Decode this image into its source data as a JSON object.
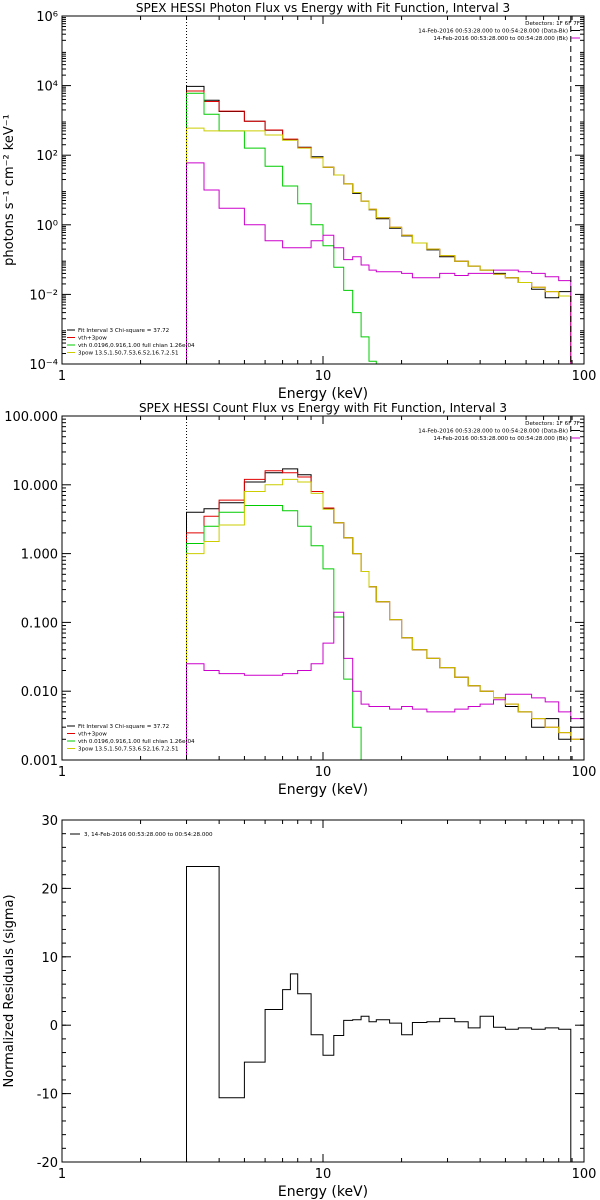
{
  "chart_data": [
    {
      "type": "line",
      "title": "SPEX HESSI Photon Flux vs Energy with Fit Function, Interval 3",
      "xlabel": "Energy (keV)",
      "ylabel": "photons s⁻¹ cm⁻² keV⁻¹",
      "xscale": "log",
      "yscale": "log",
      "xlim": [
        1,
        100
      ],
      "ylim": [
        0.0001,
        1000000
      ],
      "x_ticks": [
        1,
        10,
        100
      ],
      "x_tick_labels": [
        "1",
        "10",
        "100"
      ],
      "y_ticks": [
        0.0001,
        0.01,
        1,
        100,
        10000,
        1000000
      ],
      "y_tick_labels": [
        "10⁻⁴",
        "10⁻²",
        "10⁰",
        "10²",
        "10⁴",
        "10⁶"
      ],
      "vlines": [
        {
          "x": 3,
          "style": "dotted"
        },
        {
          "x": 89,
          "style": "dashed"
        }
      ],
      "legend_topright": [
        {
          "text": "Detectors: 1F 6F 7F"
        },
        {
          "text": "14-Feb-2016 00:53:28.000 to 00:54:28.000 (Data-Bk)",
          "color": "#000000"
        },
        {
          "text": "14-Feb-2016 00:53:28.000 to 00:54:28.000 (Bk)",
          "color": "#cc00cc"
        }
      ],
      "legend_bottomleft": [
        {
          "text": "Fit Interval 3   Chi-square = 37.72",
          "color": "#000000"
        },
        {
          "text": "vth+3pow",
          "color": "#e00000"
        },
        {
          "text": "vth 0.0196,0.916,1.00  full chian 1.26e-04",
          "color": "#00cc00"
        },
        {
          "text": "3pow 13.5,1.50,7.53,6.52,16.7,2.51",
          "color": "#cccc00"
        }
      ],
      "edges": [
        3,
        3.5,
        4,
        5,
        6,
        7,
        8,
        9,
        10,
        11,
        12,
        13,
        14,
        15,
        16,
        18,
        20,
        22,
        25,
        28,
        32,
        36,
        40,
        45,
        50,
        56,
        63,
        71,
        80,
        89
      ],
      "series": [
        {
          "name": "Data-Bk",
          "color": "#000000",
          "values": [
            9500,
            3800,
            1800,
            950,
            520,
            280,
            170,
            90,
            45,
            27,
            15,
            8,
            4.8,
            2.7,
            1.5,
            0.8,
            0.48,
            0.3,
            0.19,
            0.12,
            0.09,
            0.065,
            0.05,
            0.04,
            0.03,
            0.022,
            0.014,
            0.008,
            0.012
          ]
        },
        {
          "name": "vth+3pow",
          "color": "#e00000",
          "values": [
            7000,
            3500,
            1850,
            950,
            530,
            290,
            165,
            85,
            45,
            27,
            15,
            8.5,
            4.8,
            2.8,
            1.6,
            0.85,
            0.5,
            0.3,
            0.2,
            0.13,
            0.09,
            0.065,
            0.05,
            0.038,
            0.03,
            0.022,
            0.016,
            0.012,
            0.009
          ]
        },
        {
          "name": "vth",
          "color": "#00cc00",
          "values": [
            6000,
            1500,
            500,
            160,
            48,
            13,
            4,
            1,
            0.25,
            0.06,
            0.013,
            0.003,
            0.0006,
            0.00012,
            0.0001
          ]
        },
        {
          "name": "3pow",
          "color": "#cccc00",
          "values": [
            600,
            500,
            500,
            500,
            380,
            270,
            160,
            85,
            45,
            27,
            15,
            8.5,
            4.8,
            2.8,
            1.6,
            0.85,
            0.5,
            0.3,
            0.2,
            0.13,
            0.09,
            0.065,
            0.05,
            0.038,
            0.03,
            0.022,
            0.016,
            0.012,
            0.009
          ]
        },
        {
          "name": "Bk",
          "color": "#cc00cc",
          "values": [
            60,
            10,
            3,
            1,
            0.35,
            0.22,
            0.22,
            0.35,
            0.5,
            0.22,
            0.1,
            0.12,
            0.07,
            0.05,
            0.045,
            0.045,
            0.04,
            0.03,
            0.03,
            0.04,
            0.035,
            0.04,
            0.04,
            0.05,
            0.05,
            0.045,
            0.04,
            0.032,
            0.025
          ]
        }
      ]
    },
    {
      "type": "line",
      "title": "SPEX HESSI Count Flux vs Energy with Fit Function, Interval 3",
      "xlabel": "Energy (keV)",
      "ylabel": "",
      "xscale": "log",
      "yscale": "log",
      "xlim": [
        1,
        100
      ],
      "ylim": [
        0.001,
        100
      ],
      "x_ticks": [
        1,
        10,
        100
      ],
      "x_tick_labels": [
        "1",
        "10",
        "100"
      ],
      "y_ticks": [
        0.001,
        0.01,
        0.1,
        1,
        10,
        100
      ],
      "y_tick_labels": [
        "0.001",
        "0.010",
        "0.100",
        "1.000",
        "10.000",
        "100.000"
      ],
      "vlines": [
        {
          "x": 3,
          "style": "dotted"
        },
        {
          "x": 89,
          "style": "dashed"
        }
      ],
      "legend_topright": [
        {
          "text": "Detectors: 1F 6F 7F"
        },
        {
          "text": "14-Feb-2016 00:53:28.000 to 00:54:28.000 (Data-Bk)",
          "color": "#000000"
        },
        {
          "text": "14-Feb-2016 00:53:28.000 to 00:54:28.000 (Bk)",
          "color": "#cc00cc"
        }
      ],
      "legend_bottomleft": [
        {
          "text": "Fit Interval 3   Chi-square = 37.72",
          "color": "#000000"
        },
        {
          "text": "vth+3pow",
          "color": "#e00000"
        },
        {
          "text": "vth 0.0196,0.916,1.00  full chian 1.26e-04",
          "color": "#00cc00"
        },
        {
          "text": "3pow 13.5,1.50,7.53,6.52,16.7,2.51",
          "color": "#cccc00"
        }
      ],
      "edges": [
        3,
        3.5,
        4,
        5,
        6,
        7,
        8,
        9,
        10,
        11,
        12,
        13,
        14,
        15,
        16,
        18,
        20,
        22,
        25,
        28,
        32,
        36,
        40,
        45,
        50,
        56,
        63,
        71,
        80,
        89,
        100
      ],
      "series": [
        {
          "name": "Data-Bk",
          "color": "#000000",
          "values": [
            4,
            4.5,
            5.5,
            11,
            15,
            17,
            14,
            8,
            4.5,
            2.8,
            1.7,
            1,
            0.55,
            0.33,
            0.2,
            0.11,
            0.06,
            0.04,
            0.03,
            0.022,
            0.016,
            0.012,
            0.01,
            0.008,
            0.006,
            0.005,
            0.003,
            0.004,
            0.002,
            0.003
          ]
        },
        {
          "name": "vth+3pow",
          "color": "#e00000",
          "values": [
            2,
            3.5,
            6,
            12,
            16,
            15,
            13,
            8,
            4.6,
            2.8,
            1.7,
            1,
            0.55,
            0.33,
            0.2,
            0.11,
            0.06,
            0.04,
            0.03,
            0.022,
            0.016,
            0.012,
            0.01,
            0.008,
            0.0065,
            0.005,
            0.004,
            0.003,
            0.0025,
            0.002
          ]
        },
        {
          "name": "vth",
          "color": "#00cc00",
          "values": [
            1.4,
            2.5,
            4,
            5,
            5,
            4.2,
            2.5,
            1.3,
            0.6,
            0.12,
            0.015,
            0.003,
            0.0008
          ]
        },
        {
          "name": "3pow",
          "color": "#cccc00",
          "values": [
            1,
            1.5,
            2.6,
            8,
            10,
            12,
            11,
            7.5,
            4.4,
            2.8,
            1.7,
            1,
            0.55,
            0.33,
            0.2,
            0.11,
            0.06,
            0.04,
            0.03,
            0.022,
            0.016,
            0.012,
            0.01,
            0.008,
            0.0065,
            0.005,
            0.004,
            0.003,
            0.0025,
            0.002
          ]
        },
        {
          "name": "Bk",
          "color": "#cc00cc",
          "values": [
            0.025,
            0.02,
            0.018,
            0.017,
            0.017,
            0.018,
            0.02,
            0.025,
            0.05,
            0.14,
            0.03,
            0.01,
            0.0065,
            0.006,
            0.006,
            0.0055,
            0.006,
            0.0055,
            0.005,
            0.005,
            0.0055,
            0.006,
            0.0065,
            0.0075,
            0.009,
            0.009,
            0.008,
            0.007,
            0.005,
            0.004
          ]
        }
      ]
    },
    {
      "type": "line",
      "title": "",
      "xlabel": "Energy (keV)",
      "ylabel": "Normalized Residuals (sigma)",
      "xscale": "log",
      "yscale": "linear",
      "xlim": [
        1,
        100
      ],
      "ylim": [
        -20,
        30
      ],
      "x_ticks": [
        1,
        10,
        100
      ],
      "x_tick_labels": [
        "1",
        "10",
        "100"
      ],
      "y_ticks": [
        -20,
        -10,
        0,
        10,
        20,
        30
      ],
      "y_tick_labels": [
        "-20",
        "-10",
        "0",
        "10",
        "20",
        "30"
      ],
      "legend_topleft": [
        {
          "text": "3, 14-Feb-2016 00:53:28.000 to 00:54:28.000",
          "color": "#000000"
        }
      ],
      "edges": [
        3,
        4,
        5,
        6,
        7,
        7.5,
        8,
        9,
        10,
        11,
        12,
        13,
        14,
        15,
        16,
        18,
        20,
        22,
        25,
        28,
        32,
        36,
        40,
        45,
        50,
        56,
        63,
        71,
        80,
        89
      ],
      "series": [
        {
          "name": "",
          "color": "#000000",
          "values": [
            23.2,
            -10.6,
            -5.4,
            2.3,
            5.2,
            7.5,
            4.6,
            -1.4,
            -4.4,
            -1.5,
            0.7,
            0.8,
            1.3,
            0.5,
            0.8,
            0.3,
            -1.4,
            0.4,
            0.5,
            1,
            0.5,
            -0.4,
            1.3,
            -0.3,
            -0.6,
            -0.4,
            -0.6,
            -0.4,
            -0.6
          ]
        }
      ]
    }
  ]
}
